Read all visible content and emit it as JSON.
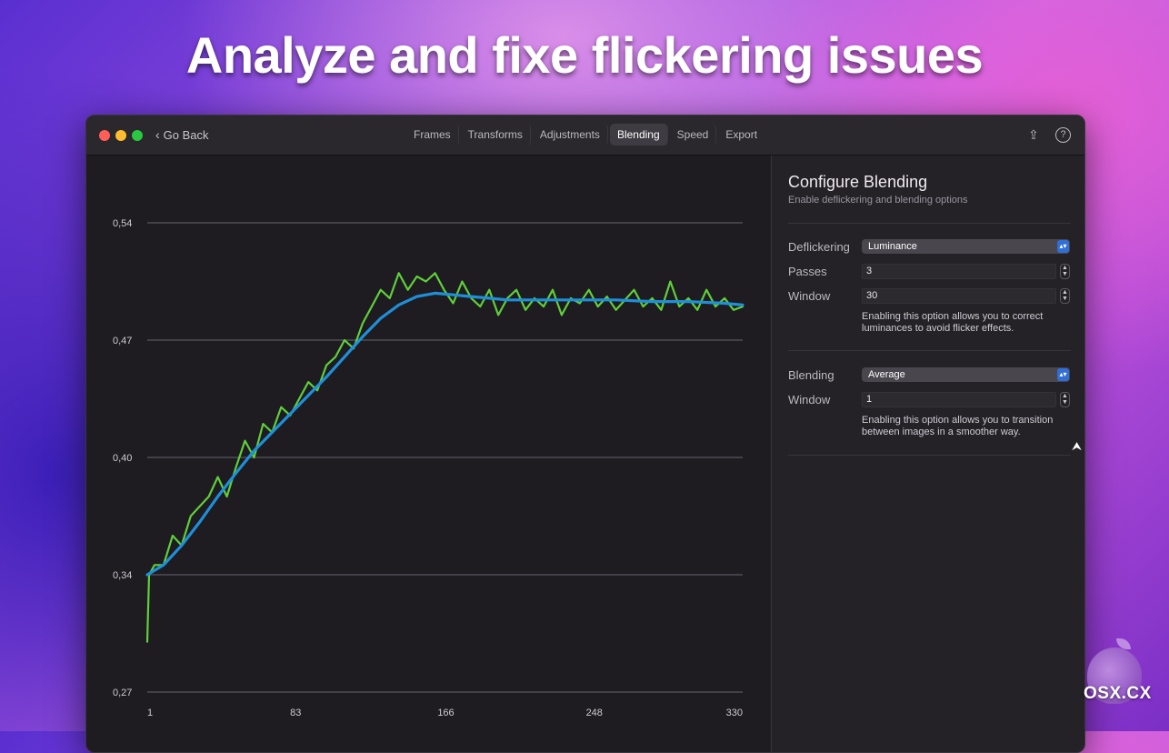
{
  "headline": "Analyze and fixe flickering issues",
  "window": {
    "go_back": "Go Back",
    "tabs": [
      "Frames",
      "Transforms",
      "Adjustments",
      "Blending",
      "Speed",
      "Export"
    ],
    "active_tab": "Blending",
    "icons": [
      "share-icon",
      "help-icon"
    ]
  },
  "sidebar": {
    "title": "Configure Blending",
    "subtitle": "Enable deflickering and blending options",
    "deflickering": {
      "label": "Deflickering",
      "value": "Luminance",
      "passes_label": "Passes",
      "passes_value": "3",
      "window_label": "Window",
      "window_value": "30",
      "help": "Enabling this option allows you to correct luminances to avoid flicker effects."
    },
    "blending": {
      "label": "Blending",
      "value": "Average",
      "window_label": "Window",
      "window_value": "1",
      "help": "Enabling this option allows you to transition between images in a smoother way."
    }
  },
  "watermark": "OSX.CX",
  "colors": {
    "raw_series": "#5fcf3a",
    "smoothed_series": "#1f8fd8",
    "grid": "#6a666d"
  },
  "chart_data": {
    "type": "line",
    "y_ticks": [
      "0,54",
      "0,47",
      "0,40",
      "0,34",
      "0,27"
    ],
    "x_ticks": [
      "1",
      "83",
      "166",
      "248",
      "330"
    ],
    "ylim": [
      0.27,
      0.54
    ],
    "xlim": [
      1,
      330
    ],
    "series": [
      {
        "color": "#5fcf3a",
        "x": [
          1,
          2,
          5,
          10,
          15,
          20,
          25,
          30,
          35,
          40,
          45,
          50,
          55,
          60,
          65,
          70,
          75,
          80,
          85,
          90,
          95,
          100,
          105,
          110,
          115,
          120,
          125,
          130,
          135,
          140,
          145,
          150,
          155,
          160,
          165,
          170,
          175,
          180,
          185,
          190,
          195,
          200,
          205,
          210,
          215,
          220,
          225,
          230,
          235,
          240,
          245,
          250,
          255,
          260,
          265,
          270,
          275,
          280,
          285,
          290,
          295,
          300,
          305,
          310,
          315,
          320,
          325,
          330
        ],
        "y": [
          0.3,
          0.34,
          0.345,
          0.345,
          0.36,
          0.355,
          0.37,
          0.375,
          0.38,
          0.39,
          0.38,
          0.395,
          0.41,
          0.4,
          0.42,
          0.415,
          0.43,
          0.425,
          0.435,
          0.445,
          0.44,
          0.455,
          0.46,
          0.47,
          0.465,
          0.48,
          0.49,
          0.5,
          0.495,
          0.51,
          0.5,
          0.508,
          0.505,
          0.51,
          0.5,
          0.492,
          0.505,
          0.495,
          0.49,
          0.5,
          0.485,
          0.495,
          0.5,
          0.488,
          0.495,
          0.49,
          0.5,
          0.485,
          0.495,
          0.492,
          0.5,
          0.49,
          0.496,
          0.488,
          0.494,
          0.5,
          0.49,
          0.495,
          0.488,
          0.505,
          0.49,
          0.495,
          0.488,
          0.5,
          0.49,
          0.495,
          0.488,
          0.49
        ]
      },
      {
        "color": "#1f8fd8",
        "x": [
          1,
          10,
          20,
          30,
          40,
          50,
          60,
          70,
          80,
          90,
          100,
          110,
          120,
          130,
          140,
          150,
          160,
          170,
          180,
          190,
          200,
          220,
          240,
          260,
          280,
          300,
          320,
          330
        ],
        "y": [
          0.34,
          0.345,
          0.355,
          0.367,
          0.38,
          0.392,
          0.404,
          0.415,
          0.426,
          0.437,
          0.448,
          0.46,
          0.472,
          0.483,
          0.491,
          0.496,
          0.498,
          0.497,
          0.496,
          0.495,
          0.494,
          0.494,
          0.494,
          0.494,
          0.493,
          0.493,
          0.492,
          0.491
        ]
      }
    ]
  }
}
